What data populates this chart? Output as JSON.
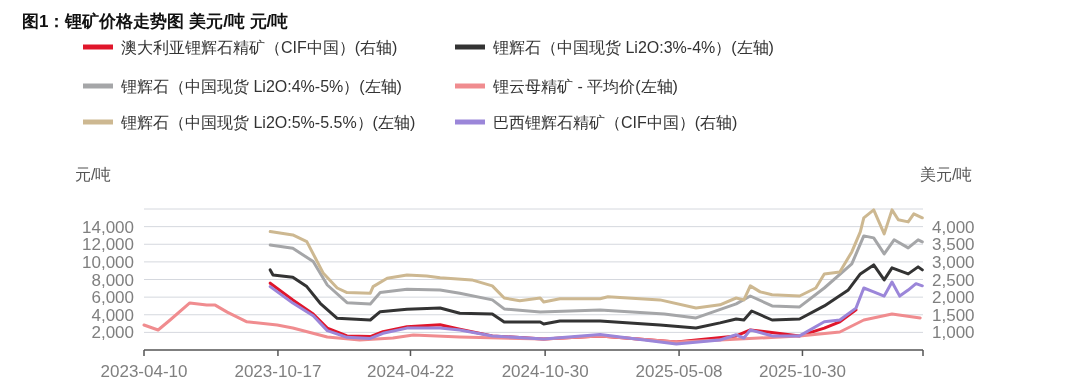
{
  "chart_data": {
    "type": "line",
    "title": "图1：锂矿价格走势图 美元/吨 元/吨",
    "ylabel": "元/吨",
    "y2label": "美元/吨",
    "legend": "top",
    "grid": "y",
    "line_style": "solid",
    "marker": "none",
    "xlim": [
      "2023-04-10",
      "2026-04-19"
    ],
    "xticks": [
      "2023-04-10",
      "2023-10-17",
      "2024-04-22",
      "2024-10-30",
      "2025-05-08",
      "2025-10-30"
    ],
    "ylim": [
      0,
      16000
    ],
    "yticks": [
      {
        "value": 2000,
        "label": "2,000"
      },
      {
        "value": 4000,
        "label": "4,000"
      },
      {
        "value": 6000,
        "label": "6,000"
      },
      {
        "value": 8000,
        "label": "8,000"
      },
      {
        "value": 10000,
        "label": "10,000"
      },
      {
        "value": 12000,
        "label": "12,000"
      },
      {
        "value": 14000,
        "label": "14,000"
      },
      {
        "value": 16000,
        "label": null
      }
    ],
    "y2lim": [
      500,
      4500
    ],
    "y2ticks": [
      {
        "value": 1000,
        "label": "1,000"
      },
      {
        "value": 1500,
        "label": "1,500"
      },
      {
        "value": 2000,
        "label": "2,000"
      },
      {
        "value": 2500,
        "label": "2,500"
      },
      {
        "value": 3000,
        "label": "3,000"
      },
      {
        "value": 3500,
        "label": "3,500"
      },
      {
        "value": 4000,
        "label": "4,000"
      }
    ],
    "series": [
      {
        "name": "澳大利亚锂辉石精矿（CIF中国）(右轴)",
        "color": "#e0162b",
        "axis": "y2",
        "x": [
          "2023-10-06",
          "2023-11-07",
          "2023-12-06",
          "2023-12-26",
          "2024-01-23",
          "2024-02-25",
          "2024-03-14",
          "2024-04-17",
          "2024-06-03",
          "2024-07-01",
          "2024-08-16",
          "2024-10-28",
          "2025-01-16",
          "2025-05-04",
          "2025-07-28",
          "2025-08-17",
          "2025-10-26",
          "2025-11-30",
          "2025-12-22",
          "2026-01-14"
        ],
        "values": [
          2395,
          1920,
          1520,
          1120,
          900,
          880,
          1020,
          1160,
          1215,
          1090,
          900,
          810,
          900,
          730,
          900,
          1070,
          900,
          1120,
          1300,
          1640
        ]
      },
      {
        "name": "锂辉石（中国现货 Li2O:3%-4%）(左轴)",
        "color": "#333333",
        "x": [
          "2023-10-06",
          "2023-10-10",
          "2023-11-07",
          "2023-11-27",
          "2023-12-16",
          "2024-01-09",
          "2024-02-25",
          "2024-03-10",
          "2024-04-17",
          "2024-06-03",
          "2024-07-01",
          "2024-08-16",
          "2024-09-02",
          "2024-10-23",
          "2024-10-28",
          "2024-11-20",
          "2025-01-16",
          "2025-04-11",
          "2025-06-01",
          "2025-07-05",
          "2025-07-28",
          "2025-08-08",
          "2025-08-19",
          "2025-09-17",
          "2025-10-26",
          "2025-11-30",
          "2026-01-03",
          "2026-01-20",
          "2026-02-08",
          "2026-02-23",
          "2026-03-06",
          "2026-03-29",
          "2026-04-12",
          "2026-04-18"
        ],
        "values": [
          9090,
          8520,
          8260,
          7190,
          5300,
          3600,
          3400,
          4350,
          4620,
          4770,
          4170,
          4090,
          3180,
          3180,
          2950,
          3290,
          3290,
          2840,
          2500,
          3070,
          3520,
          3400,
          4430,
          3400,
          3520,
          5000,
          6820,
          8630,
          9660,
          7950,
          9320,
          8630,
          9430,
          9090
        ]
      },
      {
        "name": "锂辉石（中国现货 Li2O:4%-5%）(左轴)",
        "color": "#a5a6a8",
        "x": [
          "2023-10-06",
          "2023-11-07",
          "2023-12-06",
          "2023-12-26",
          "2024-01-23",
          "2024-02-25",
          "2024-03-10",
          "2024-04-17",
          "2024-06-03",
          "2024-07-01",
          "2024-08-16",
          "2024-09-02",
          "2024-10-23",
          "2025-01-16",
          "2025-04-17",
          "2025-06-01",
          "2025-07-28",
          "2025-08-17",
          "2025-09-17",
          "2025-10-26",
          "2025-11-30",
          "2026-01-08",
          "2026-01-25",
          "2026-02-08",
          "2026-02-23",
          "2026-03-09",
          "2026-03-29",
          "2026-04-12",
          "2026-04-18"
        ],
        "values": [
          11930,
          11550,
          10030,
          7380,
          5370,
          5230,
          6510,
          6900,
          6820,
          6440,
          5680,
          4660,
          4320,
          4540,
          4090,
          3640,
          5230,
          6130,
          5000,
          4890,
          7040,
          9770,
          12950,
          12720,
          10900,
          12500,
          11590,
          12500,
          12270
        ]
      },
      {
        "name": "锂云母精矿 - 平均价(左轴)",
        "color": "#f08c8f",
        "x": [
          "2023-04-10",
          "2023-04-30",
          "2023-05-17",
          "2023-06-14",
          "2023-07-08",
          "2023-07-20",
          "2023-08-06",
          "2023-09-03",
          "2023-10-16",
          "2023-11-07",
          "2023-12-26",
          "2024-02-10",
          "2024-03-28",
          "2024-04-26",
          "2024-07-01",
          "2024-08-27",
          "2024-10-28",
          "2025-01-16",
          "2025-05-04",
          "2025-07-05",
          "2025-10-26",
          "2025-12-22",
          "2026-01-25",
          "2026-03-06",
          "2026-04-15"
        ],
        "values": [
          2840,
          2270,
          3400,
          5340,
          5100,
          5100,
          4300,
          3200,
          2840,
          2500,
          1480,
          1140,
          1360,
          1700,
          1480,
          1360,
          1250,
          1590,
          910,
          1140,
          1590,
          2040,
          3400,
          4090,
          3640
        ]
      },
      {
        "name": "锂辉石（中国现货 Li2O:5%-5.5%）(左轴)",
        "color": "#cdb891",
        "x": [
          "2023-10-06",
          "2023-11-07",
          "2023-11-27",
          "2023-12-20",
          "2024-01-09",
          "2024-01-23",
          "2024-02-25",
          "2024-02-29",
          "2024-03-20",
          "2024-04-17",
          "2024-05-15",
          "2024-06-03",
          "2024-07-18",
          "2024-08-16",
          "2024-09-02",
          "2024-09-24",
          "2024-10-23",
          "2024-10-28",
          "2024-11-20",
          "2025-01-16",
          "2025-01-27",
          "2025-04-11",
          "2025-06-01",
          "2025-07-05",
          "2025-07-28",
          "2025-08-08",
          "2025-08-17",
          "2025-08-31",
          "2025-09-17",
          "2025-10-26",
          "2025-11-18",
          "2025-11-30",
          "2025-12-22",
          "2026-01-08",
          "2026-01-20",
          "2026-01-25",
          "2026-02-08",
          "2026-02-23",
          "2026-03-06",
          "2026-03-15",
          "2026-03-29",
          "2026-04-06",
          "2026-04-18"
        ],
        "values": [
          13440,
          13060,
          12300,
          8750,
          7040,
          6510,
          6440,
          7190,
          8150,
          8520,
          8400,
          8200,
          7950,
          7270,
          5900,
          5590,
          5900,
          5450,
          5820,
          5820,
          6040,
          5680,
          4770,
          5130,
          5900,
          5680,
          7270,
          6590,
          6270,
          6130,
          7040,
          8630,
          8860,
          11130,
          13400,
          15000,
          15900,
          13180,
          15900,
          14770,
          14540,
          15450,
          15000
        ]
      },
      {
        "name": "巴西锂辉石精矿（CIF中国）(右轴)",
        "color": "#9b86d9",
        "axis": "y2",
        "x": [
          "2023-10-06",
          "2023-11-07",
          "2023-12-06",
          "2023-12-26",
          "2024-01-23",
          "2024-02-25",
          "2024-03-14",
          "2024-04-17",
          "2024-06-03",
          "2024-07-01",
          "2024-08-16",
          "2024-10-28",
          "2025-01-16",
          "2025-05-04",
          "2025-07-05",
          "2025-07-28",
          "2025-08-08",
          "2025-08-17",
          "2025-09-17",
          "2025-10-26",
          "2025-11-30",
          "2025-12-22",
          "2026-01-14",
          "2026-01-25",
          "2026-02-08",
          "2026-02-23",
          "2026-03-06",
          "2026-03-17",
          "2026-03-29",
          "2026-04-09",
          "2026-04-18"
        ],
        "values": [
          2300,
          1830,
          1470,
          1050,
          860,
          830,
          975,
          1120,
          1120,
          1070,
          900,
          810,
          940,
          670,
          785,
          930,
          840,
          1070,
          900,
          900,
          1300,
          1350,
          1690,
          2260,
          2150,
          2030,
          2430,
          2030,
          2200,
          2380,
          2320
        ]
      }
    ]
  }
}
